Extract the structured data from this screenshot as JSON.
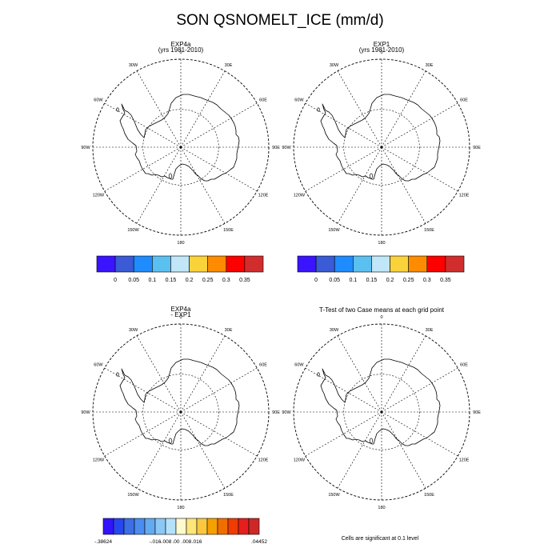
{
  "figure": {
    "title": "SON QSNOMELT_ICE (mm/d)"
  },
  "panels": [
    {
      "title_lines": [
        "EXP4a",
        "(yrs 1981-2010)"
      ]
    },
    {
      "title_lines": [
        "EXP1",
        "(yrs 1981-2010)"
      ]
    },
    {
      "title_lines": [
        "EXP4a",
        "- EXP1"
      ]
    },
    {
      "title_lines": [
        "T-Test of two Case means at each grid point"
      ]
    }
  ],
  "longitude_labels": [
    "0",
    "30E",
    "60E",
    "90E",
    "120E",
    "150E",
    "180",
    "150W",
    "120W",
    "90W",
    "60W",
    "30W"
  ],
  "colorbars": {
    "top": {
      "colors": [
        "#3a14ff",
        "#3a5ad6",
        "#1e8cff",
        "#5ac0f0",
        "#c0e6f8",
        "#fad23a",
        "#ff8c00",
        "#ff0000",
        "#d22d2d"
      ],
      "labels": [
        "0",
        "0.05",
        "0.1",
        "0.15",
        "0.2",
        "0.25",
        "0.3",
        "0.35"
      ]
    },
    "difference": {
      "colors": [
        "#3214ff",
        "#2846ee",
        "#3c6ee6",
        "#4a8cf0",
        "#64aaf0",
        "#8cc8f5",
        "#b4e1fa",
        "#fffacd",
        "#ffe678",
        "#fac83c",
        "#f5a000",
        "#f06e00",
        "#f03c00",
        "#e61e1e",
        "#cd2828"
      ],
      "labels": [
        "-.38624",
        "-.016",
        "-.008",
        ".00",
        ".008",
        ".016",
        ".04452"
      ]
    }
  },
  "footnote": "Cells are significant at 0.1 level"
}
